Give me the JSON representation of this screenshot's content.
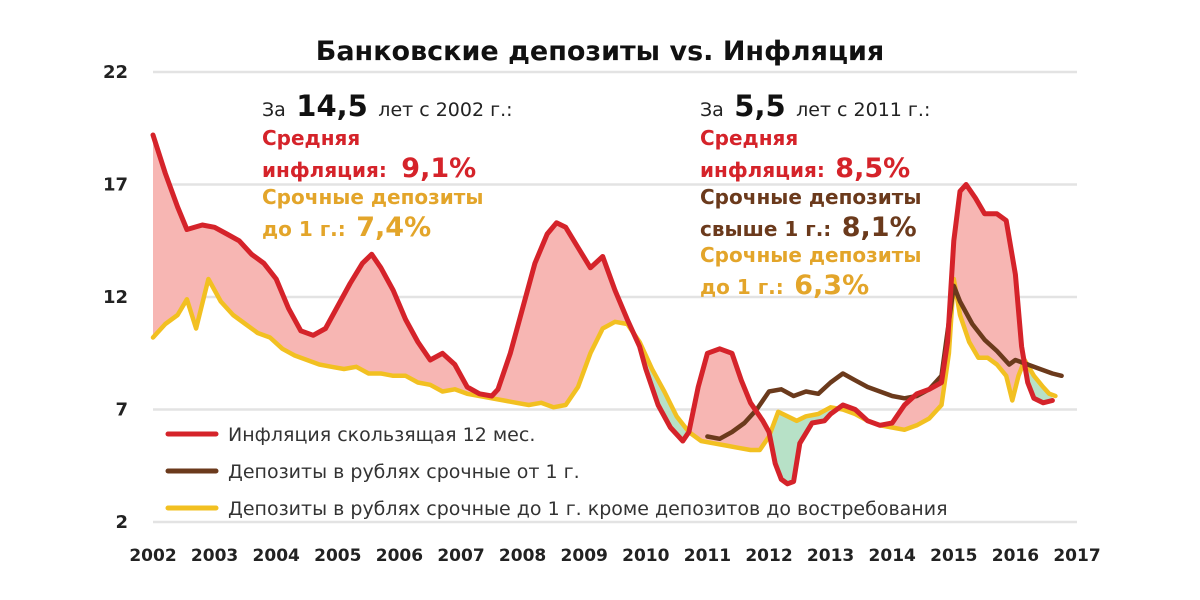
{
  "chart_data": {
    "type": "line",
    "title": "Банковские депозиты vs. Инфляция",
    "xlabel": "",
    "ylabel": "",
    "xlim": [
      2002,
      2017
    ],
    "ylim": [
      2,
      22
    ],
    "y_ticks": [
      "22",
      "17",
      "12",
      "7",
      "2"
    ],
    "x_ticks": [
      "2002",
      "2003",
      "2004",
      "2005",
      "2006",
      "2007",
      "2008",
      "2009",
      "2010",
      "2011",
      "2012",
      "2013",
      "2014",
      "2015",
      "2016",
      "2017"
    ],
    "grid": "horizontal",
    "legend_position": "bottom-left",
    "series": [
      {
        "name": "Инфляция скользящая 12 мес.",
        "color": "#d5232a",
        "points": [
          [
            2002.0,
            19.2
          ],
          [
            2002.2,
            17.5
          ],
          [
            2002.4,
            16.0
          ],
          [
            2002.55,
            15.0
          ],
          [
            2002.8,
            15.2
          ],
          [
            2003.0,
            15.1
          ],
          [
            2003.2,
            14.8
          ],
          [
            2003.4,
            14.5
          ],
          [
            2003.6,
            13.9
          ],
          [
            2003.8,
            13.5
          ],
          [
            2004.0,
            12.8
          ],
          [
            2004.2,
            11.5
          ],
          [
            2004.4,
            10.5
          ],
          [
            2004.6,
            10.3
          ],
          [
            2004.8,
            10.6
          ],
          [
            2005.0,
            11.6
          ],
          [
            2005.2,
            12.6
          ],
          [
            2005.4,
            13.5
          ],
          [
            2005.55,
            13.9
          ],
          [
            2005.7,
            13.3
          ],
          [
            2005.9,
            12.3
          ],
          [
            2006.1,
            11.0
          ],
          [
            2006.3,
            10.0
          ],
          [
            2006.5,
            9.2
          ],
          [
            2006.7,
            9.5
          ],
          [
            2006.9,
            9.0
          ],
          [
            2007.1,
            8.0
          ],
          [
            2007.3,
            7.7
          ],
          [
            2007.5,
            7.6
          ],
          [
            2007.6,
            7.9
          ],
          [
            2007.8,
            9.5
          ],
          [
            2008.0,
            11.5
          ],
          [
            2008.2,
            13.5
          ],
          [
            2008.4,
            14.8
          ],
          [
            2008.55,
            15.3
          ],
          [
            2008.7,
            15.1
          ],
          [
            2008.9,
            14.2
          ],
          [
            2009.1,
            13.3
          ],
          [
            2009.3,
            13.8
          ],
          [
            2009.5,
            12.3
          ],
          [
            2009.7,
            11.0
          ],
          [
            2009.9,
            9.8
          ],
          [
            2010.0,
            8.8
          ],
          [
            2010.2,
            7.2
          ],
          [
            2010.4,
            6.2
          ],
          [
            2010.6,
            5.6
          ],
          [
            2010.7,
            6.0
          ],
          [
            2010.85,
            8.0
          ],
          [
            2011.0,
            9.5
          ],
          [
            2011.2,
            9.7
          ],
          [
            2011.4,
            9.5
          ],
          [
            2011.55,
            8.3
          ],
          [
            2011.7,
            7.3
          ],
          [
            2011.9,
            6.5
          ],
          [
            2012.0,
            6.0
          ],
          [
            2012.1,
            4.6
          ],
          [
            2012.2,
            3.9
          ],
          [
            2012.3,
            3.7
          ],
          [
            2012.4,
            3.8
          ],
          [
            2012.5,
            5.5
          ],
          [
            2012.7,
            6.4
          ],
          [
            2012.9,
            6.5
          ],
          [
            2013.0,
            6.8
          ],
          [
            2013.2,
            7.2
          ],
          [
            2013.4,
            7.0
          ],
          [
            2013.6,
            6.5
          ],
          [
            2013.8,
            6.3
          ],
          [
            2014.0,
            6.4
          ],
          [
            2014.2,
            7.2
          ],
          [
            2014.4,
            7.7
          ],
          [
            2014.6,
            7.9
          ],
          [
            2014.8,
            8.2
          ],
          [
            2014.9,
            10.0
          ],
          [
            2015.0,
            14.5
          ],
          [
            2015.1,
            16.7
          ],
          [
            2015.2,
            17.0
          ],
          [
            2015.35,
            16.4
          ],
          [
            2015.5,
            15.7
          ],
          [
            2015.7,
            15.7
          ],
          [
            2015.85,
            15.4
          ],
          [
            2016.0,
            13.0
          ],
          [
            2016.1,
            9.8
          ],
          [
            2016.2,
            8.2
          ],
          [
            2016.3,
            7.5
          ],
          [
            2016.45,
            7.3
          ],
          [
            2016.6,
            7.4
          ]
        ]
      },
      {
        "name": "Депозиты в рублях срочные от 1 г.",
        "color": "#6b3a1c",
        "points": [
          [
            2011.0,
            5.8
          ],
          [
            2011.2,
            5.7
          ],
          [
            2011.4,
            6.0
          ],
          [
            2011.6,
            6.4
          ],
          [
            2011.8,
            7.0
          ],
          [
            2012.0,
            7.8
          ],
          [
            2012.2,
            7.9
          ],
          [
            2012.4,
            7.6
          ],
          [
            2012.6,
            7.8
          ],
          [
            2012.8,
            7.7
          ],
          [
            2013.0,
            8.2
          ],
          [
            2013.2,
            8.6
          ],
          [
            2013.4,
            8.3
          ],
          [
            2013.6,
            8.0
          ],
          [
            2013.8,
            7.8
          ],
          [
            2014.0,
            7.6
          ],
          [
            2014.2,
            7.5
          ],
          [
            2014.4,
            7.6
          ],
          [
            2014.6,
            7.9
          ],
          [
            2014.8,
            8.5
          ],
          [
            2015.0,
            12.5
          ],
          [
            2015.1,
            11.8
          ],
          [
            2015.3,
            10.8
          ],
          [
            2015.5,
            10.1
          ],
          [
            2015.7,
            9.6
          ],
          [
            2015.9,
            9.0
          ],
          [
            2016.0,
            9.2
          ],
          [
            2016.2,
            9.0
          ],
          [
            2016.4,
            8.8
          ],
          [
            2016.6,
            8.6
          ],
          [
            2016.75,
            8.5
          ]
        ]
      },
      {
        "name": "Депозиты в рублях срочные до 1 г. кроме депозитов до востребования",
        "color": "#f2c021",
        "points": [
          [
            2002.0,
            10.2
          ],
          [
            2002.2,
            10.8
          ],
          [
            2002.4,
            11.2
          ],
          [
            2002.55,
            11.9
          ],
          [
            2002.7,
            10.6
          ],
          [
            2002.9,
            12.8
          ],
          [
            2003.1,
            11.8
          ],
          [
            2003.3,
            11.2
          ],
          [
            2003.5,
            10.8
          ],
          [
            2003.7,
            10.4
          ],
          [
            2003.9,
            10.2
          ],
          [
            2004.1,
            9.7
          ],
          [
            2004.3,
            9.4
          ],
          [
            2004.5,
            9.2
          ],
          [
            2004.7,
            9.0
          ],
          [
            2004.9,
            8.9
          ],
          [
            2005.1,
            8.8
          ],
          [
            2005.3,
            8.9
          ],
          [
            2005.5,
            8.6
          ],
          [
            2005.7,
            8.6
          ],
          [
            2005.9,
            8.5
          ],
          [
            2006.1,
            8.5
          ],
          [
            2006.3,
            8.2
          ],
          [
            2006.5,
            8.1
          ],
          [
            2006.7,
            7.8
          ],
          [
            2006.9,
            7.9
          ],
          [
            2007.1,
            7.7
          ],
          [
            2007.3,
            7.6
          ],
          [
            2007.5,
            7.5
          ],
          [
            2007.7,
            7.4
          ],
          [
            2007.9,
            7.3
          ],
          [
            2008.1,
            7.2
          ],
          [
            2008.3,
            7.3
          ],
          [
            2008.5,
            7.1
          ],
          [
            2008.7,
            7.2
          ],
          [
            2008.9,
            8.0
          ],
          [
            2009.1,
            9.5
          ],
          [
            2009.3,
            10.6
          ],
          [
            2009.5,
            10.9
          ],
          [
            2009.7,
            10.8
          ],
          [
            2009.9,
            10.0
          ],
          [
            2010.1,
            8.8
          ],
          [
            2010.3,
            7.8
          ],
          [
            2010.5,
            6.7
          ],
          [
            2010.7,
            6.0
          ],
          [
            2010.9,
            5.6
          ],
          [
            2011.1,
            5.5
          ],
          [
            2011.3,
            5.4
          ],
          [
            2011.5,
            5.3
          ],
          [
            2011.7,
            5.2
          ],
          [
            2011.85,
            5.2
          ],
          [
            2012.0,
            5.8
          ],
          [
            2012.15,
            6.9
          ],
          [
            2012.3,
            6.7
          ],
          [
            2012.45,
            6.5
          ],
          [
            2012.6,
            6.7
          ],
          [
            2012.8,
            6.8
          ],
          [
            2013.0,
            7.1
          ],
          [
            2013.2,
            7.0
          ],
          [
            2013.4,
            6.8
          ],
          [
            2013.6,
            6.5
          ],
          [
            2013.8,
            6.3
          ],
          [
            2014.0,
            6.2
          ],
          [
            2014.2,
            6.1
          ],
          [
            2014.4,
            6.3
          ],
          [
            2014.6,
            6.6
          ],
          [
            2014.8,
            7.2
          ],
          [
            2014.92,
            9.5
          ],
          [
            2015.0,
            12.8
          ],
          [
            2015.1,
            11.2
          ],
          [
            2015.25,
            10.0
          ],
          [
            2015.4,
            9.3
          ],
          [
            2015.55,
            9.3
          ],
          [
            2015.7,
            9.0
          ],
          [
            2015.85,
            8.5
          ],
          [
            2015.95,
            7.4
          ],
          [
            2016.05,
            8.5
          ],
          [
            2016.15,
            9.2
          ],
          [
            2016.3,
            8.5
          ],
          [
            2016.45,
            8.0
          ],
          [
            2016.55,
            7.7
          ],
          [
            2016.65,
            7.6
          ]
        ]
      }
    ],
    "fill_colors": {
      "inflation_above": "#f7b6b3",
      "deposits_above": "#b7e1c7"
    },
    "annotations": {
      "left": {
        "line1_prefix": "За",
        "line1_big": "14,5",
        "line1_suffix": "лет с 2002 г.:",
        "line2": "Средняя",
        "line3_label": "инфляция:",
        "line3_value": "9,1%",
        "line4": "Срочные депозиты",
        "line5_label": "до 1 г.:",
        "line5_value": "7,4%"
      },
      "right": {
        "line1_prefix": "За",
        "line1_big": "5,5",
        "line1_suffix": "лет с 2011 г.:",
        "line2": "Средняя",
        "line3_label": "инфляция:",
        "line3_value": "8,5%",
        "line4": "Срочные депозиты",
        "line5_label": "свыше 1 г.:",
        "line5_value": "8,1%",
        "line6": "Срочные депозиты",
        "line7_label": "до 1 г.:",
        "line7_value": "6,3%"
      }
    }
  }
}
